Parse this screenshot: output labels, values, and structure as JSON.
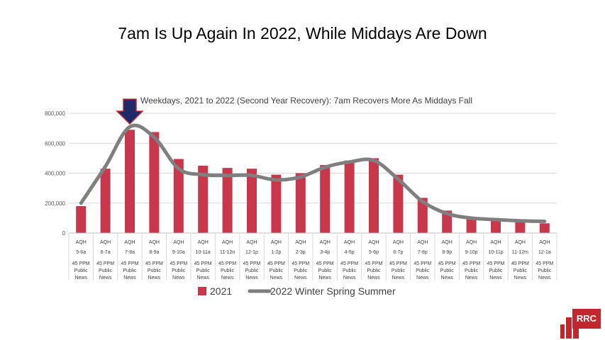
{
  "slide": {
    "title": "7am Is Up Again In 2022, While Middays Are Down"
  },
  "logo": {
    "text": "RRC"
  },
  "colors": {
    "bar_2021": "#c8374c",
    "line_2022": "#7f7f7f",
    "arrow": "#1f2a6b",
    "arrow_outline": "#c2272d",
    "grid": "#d9d9d9"
  },
  "chart_data": {
    "type": "bar",
    "title": "Weekdays, 2021 to 2022 (Second Year Recovery): 7am Recovers More As Middays Fall",
    "xlabel": "",
    "ylabel": "",
    "ylim": [
      0,
      800000
    ],
    "yticks": [
      0,
      200000,
      400000,
      600000,
      800000
    ],
    "ytick_labels": [
      "0",
      "200,000",
      "400,000",
      "600,000",
      "800,000"
    ],
    "grid": true,
    "legend_position": "bottom",
    "category_levels": {
      "metric": "AQH",
      "group_line1": "45 PPM",
      "group_line2": "Public",
      "group_line3": "News"
    },
    "categories": [
      "5-6a",
      "6-7a",
      "7-8a",
      "8-9a",
      "9-10a",
      "10-11a",
      "11-12n",
      "12-1p",
      "1-2p",
      "2-3p",
      "3-4p",
      "4-5p",
      "5-6p",
      "6-7p",
      "7-8p",
      "8-9p",
      "9-10p",
      "10-11p",
      "11-12m",
      "12-1a"
    ],
    "highlight_category": "7-8a",
    "series": [
      {
        "name": "2021",
        "type": "bar",
        "values": [
          180000,
          430000,
          690000,
          675000,
          495000,
          450000,
          435000,
          430000,
          390000,
          400000,
          455000,
          485000,
          500000,
          390000,
          235000,
          150000,
          100000,
          85000,
          75000,
          65000
        ]
      },
      {
        "name": "2022 Winter Spring Summer",
        "type": "line",
        "values": [
          200000,
          445000,
          710000,
          640000,
          430000,
          390000,
          385000,
          385000,
          355000,
          375000,
          440000,
          475000,
          485000,
          360000,
          210000,
          130000,
          100000,
          90000,
          82000,
          78000
        ]
      }
    ]
  }
}
